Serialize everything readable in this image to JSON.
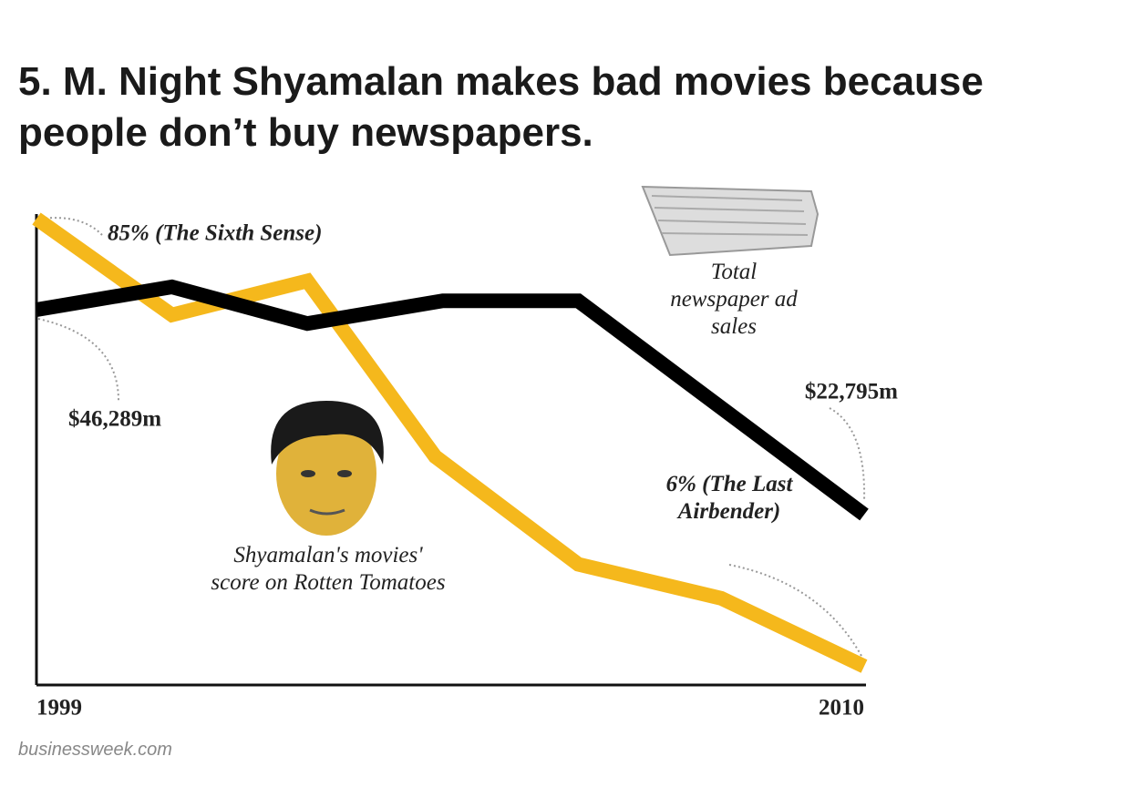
{
  "header": {
    "title": "5. M. Night Shyamalan makes bad movies because people don’t buy newspapers."
  },
  "chart_data": {
    "type": "line",
    "xlim": [
      1999,
      2010
    ],
    "xticks": [
      1999,
      2010
    ],
    "ylim": [
      2.7,
      85.8
    ],
    "y2lim": [
      3270,
      57250
    ],
    "series": [
      {
        "name": "Shyamalan's movies' score on Rotten Tomatoes",
        "color": "#f5b81c",
        "x": [
          1999,
          2000.8,
          2002.6,
          2004.3,
          2006.2,
          2008.1,
          2010
        ],
        "values": [
          85,
          68,
          74,
          43,
          24,
          18,
          6
        ],
        "value_labels": [
          "85% (The Sixth Sense)",
          null,
          null,
          null,
          null,
          null,
          "6% (The Last Airbender)"
        ]
      },
      {
        "name": "Total newspaper ad sales",
        "color": "#000000",
        "axis": "y2",
        "x": [
          1999,
          2000.8,
          2002.6,
          2004.4,
          2006.2,
          2010
        ],
        "values": [
          46289,
          48900,
          44700,
          47300,
          47300,
          22795
        ],
        "value_labels": [
          "$46,289m",
          null,
          null,
          null,
          null,
          "$22,795m"
        ]
      }
    ]
  },
  "source": "businessweek.com"
}
